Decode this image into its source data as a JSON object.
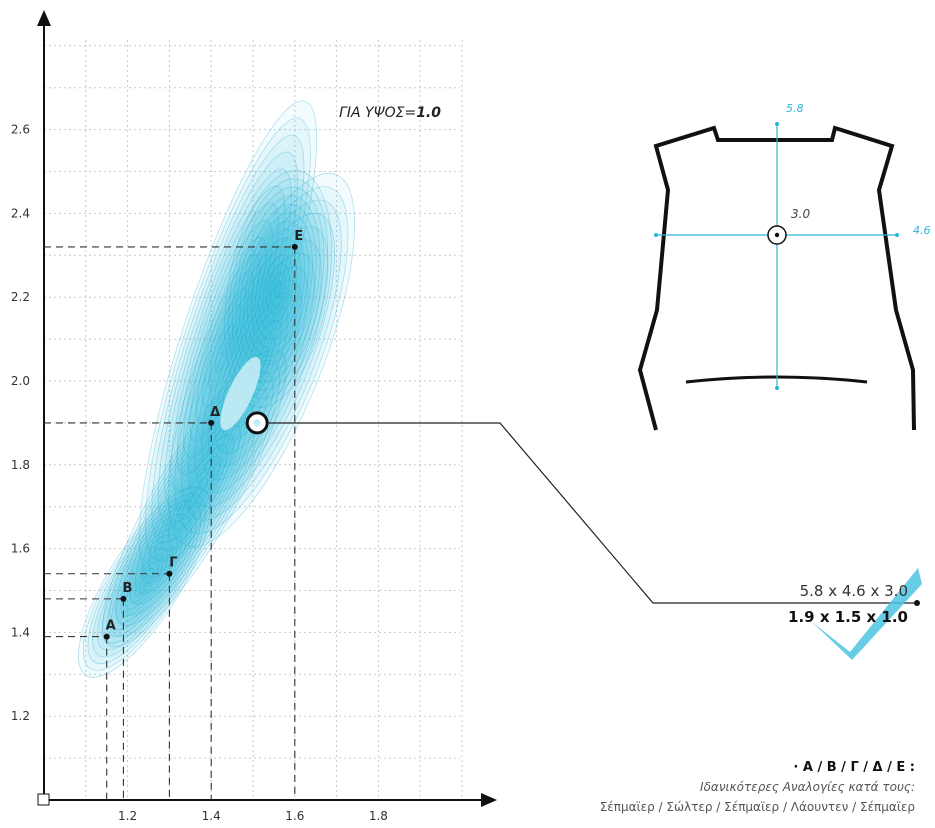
{
  "height_note": {
    "prefix": "ΓΙΑ ΥΨΟΣ=",
    "value": "1.0"
  },
  "chart_data": {
    "type": "scatter",
    "x_ticks": [
      "1.2",
      "1.4",
      "1.6",
      "1.8"
    ],
    "y_ticks": [
      "1.2",
      "1.4",
      "1.6",
      "1.8",
      "2.0",
      "2.2",
      "2.4",
      "2.6"
    ],
    "points": [
      {
        "label": "Α",
        "x": 1.15,
        "y": 1.39
      },
      {
        "label": "Β",
        "x": 1.19,
        "y": 1.48
      },
      {
        "label": "Γ",
        "x": 1.3,
        "y": 1.54
      },
      {
        "label": "Δ",
        "x": 1.4,
        "y": 1.9
      },
      {
        "label": "Ε",
        "x": 1.6,
        "y": 2.32
      }
    ],
    "highlight": {
      "x": 1.51,
      "y": 1.9
    },
    "color": "#29b6dc"
  },
  "torso": {
    "height_label": "5.8",
    "width_label": "4.6",
    "depth_label": "3.0",
    "color": "#29b6dc"
  },
  "callout": {
    "raw": "5.8 x 4.6 x 3.0",
    "ratio": "1.9 x 1.5 x 1.0"
  },
  "legend": {
    "title": "· Α / Β / Γ / Δ / Ε :",
    "subtitle": "Ιδανικότερες Αναλογίες κατά τους:",
    "authors": "Σέπμαϊερ / Σώλτερ / Σέπμαϊερ / Λάουντεν / Σέπμαϊερ"
  }
}
